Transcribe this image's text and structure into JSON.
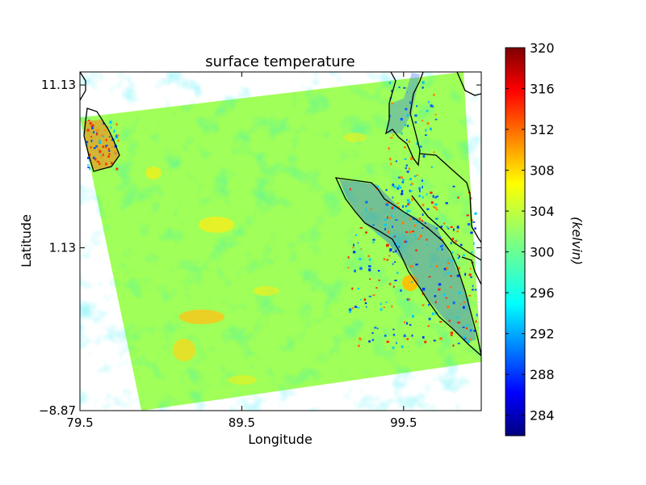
{
  "chart_data": {
    "type": "heatmap",
    "title": "surface temperature",
    "xlabel": "Longitude",
    "ylabel": "Latitude",
    "x_ticks": [
      "79.5",
      "89.5",
      "99.5"
    ],
    "x_tick_values": [
      79.5,
      89.5,
      99.5
    ],
    "y_ticks": [
      "11.13",
      "1.13",
      "−8.87"
    ],
    "y_tick_values": [
      11.13,
      1.13,
      -8.87
    ],
    "xlim": [
      79.5,
      104.3
    ],
    "ylim": [
      -8.87,
      11.93
    ],
    "colorbar": {
      "label": "(kelvin)",
      "ticks": [
        "320",
        "316",
        "312",
        "308",
        "304",
        "300",
        "296",
        "292",
        "288",
        "284"
      ],
      "tick_values": [
        320,
        316,
        312,
        308,
        304,
        300,
        296,
        292,
        288,
        284
      ],
      "range": [
        282,
        320
      ],
      "colormap": "jet"
    },
    "swath_corners": [
      [
        79.5,
        9.13
      ],
      [
        103.2,
        11.93
      ],
      [
        104.3,
        -5.87
      ],
      [
        83.3,
        -8.87
      ]
    ],
    "typical_value": 302,
    "grid": false
  },
  "colors": {
    "base_field": "#a0ff58",
    "coastline": "#000000"
  }
}
